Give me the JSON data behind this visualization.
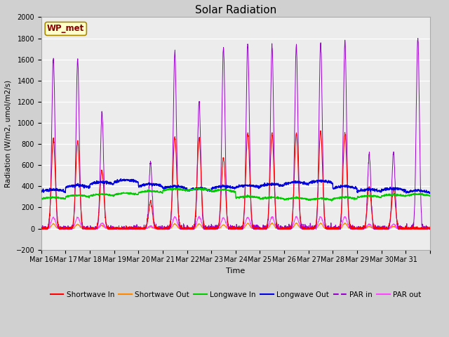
{
  "title": "Solar Radiation",
  "ylabel": "Radiation (W/m2, umol/m2/s)",
  "xlabel": "Time",
  "ylim": [
    -200,
    2000
  ],
  "yticks": [
    -200,
    0,
    200,
    400,
    600,
    800,
    1000,
    1200,
    1400,
    1600,
    1800,
    2000
  ],
  "x_labels": [
    "Mar 16",
    "Mar 17",
    "Mar 18",
    "Mar 19",
    "Mar 20",
    "Mar 21",
    "Mar 22",
    "Mar 23",
    "Mar 24",
    "Mar 25",
    "Mar 26",
    "Mar 27",
    "Mar 28",
    "Mar 29",
    "Mar 30",
    "Mar 31"
  ],
  "n_days": 16,
  "fig_facecolor": "#d0d0d0",
  "ax_facecolor": "#ececec",
  "label_box_text": "WP_met",
  "label_box_facecolor": "#ffffcc",
  "label_box_edgecolor": "#aa8800",
  "colors": {
    "shortwave_in": "#ff0000",
    "shortwave_out": "#ff8800",
    "longwave_in": "#00cc00",
    "longwave_out": "#0000dd",
    "par_in": "#9900cc",
    "par_out": "#ff44ff"
  },
  "legend_labels": [
    "Shortwave In",
    "Shortwave Out",
    "Longwave In",
    "Longwave Out",
    "PAR in",
    "PAR out"
  ],
  "sw_in_peaks": [
    850,
    830,
    550,
    0,
    250,
    870,
    860,
    670,
    900,
    900,
    900,
    920,
    900,
    390,
    370,
    0
  ],
  "par_in_peaks": [
    1620,
    1600,
    1100,
    0,
    620,
    1670,
    1200,
    1720,
    1750,
    1720,
    1730,
    1760,
    1760,
    700,
    710,
    1800
  ],
  "sw_out_peaks": [
    45,
    40,
    30,
    0,
    15,
    45,
    45,
    35,
    50,
    50,
    50,
    50,
    50,
    20,
    20,
    0
  ],
  "par_out_peaks": [
    105,
    105,
    50,
    0,
    20,
    110,
    110,
    105,
    105,
    110,
    110,
    110,
    110,
    40,
    40,
    0
  ],
  "lw_in_values": [
    280,
    300,
    310,
    320,
    340,
    360,
    360,
    350,
    290,
    280,
    275,
    270,
    280,
    295,
    305,
    310
  ],
  "lw_out_values": [
    350,
    390,
    420,
    440,
    400,
    380,
    360,
    380,
    390,
    400,
    420,
    430,
    380,
    350,
    360,
    340
  ]
}
